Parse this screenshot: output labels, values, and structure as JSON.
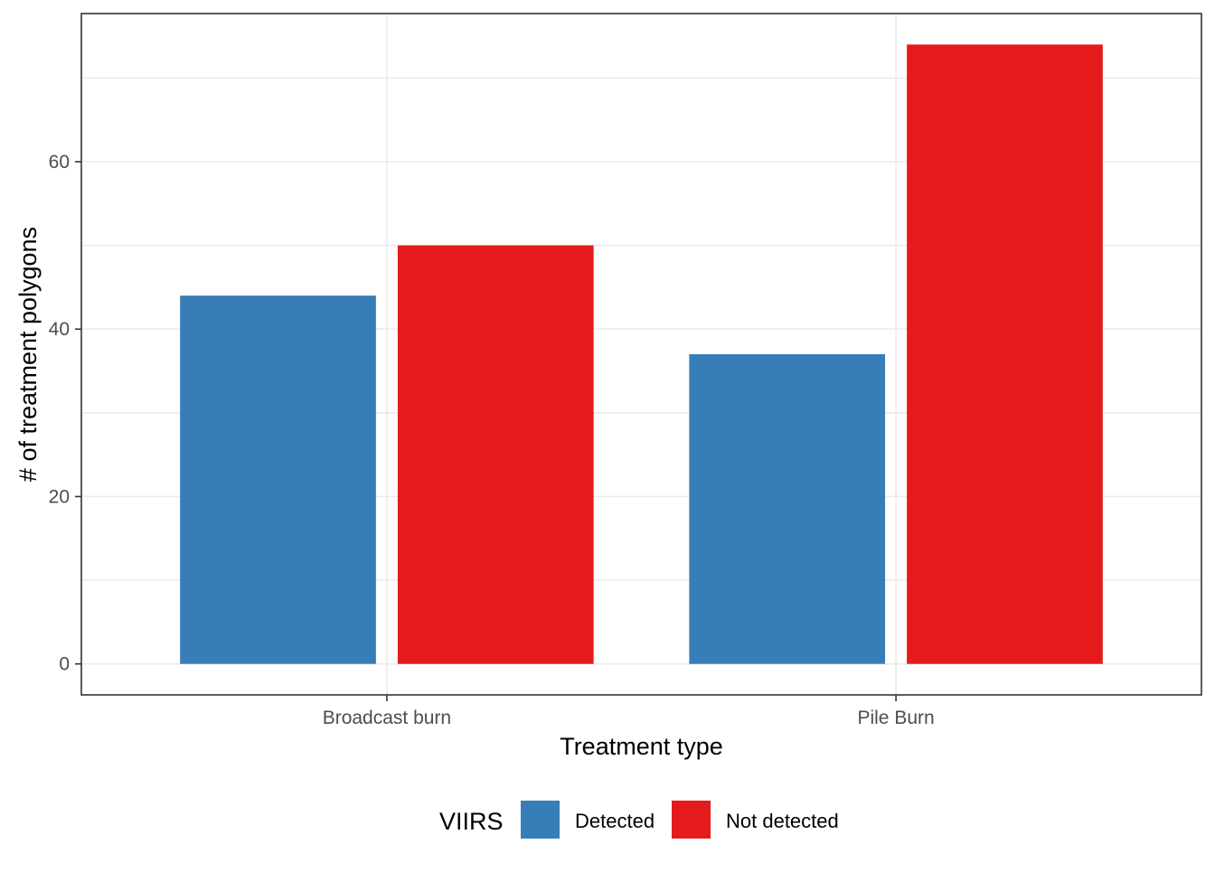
{
  "chart_data": {
    "type": "bar",
    "categories": [
      "Broadcast burn",
      "Pile Burn"
    ],
    "series": [
      {
        "name": "Detected",
        "values": [
          44,
          37
        ],
        "color": "#377EB8"
      },
      {
        "name": "Not detected",
        "values": [
          50,
          74
        ],
        "color": "#E41A1C"
      }
    ],
    "xlabel": "Treatment type",
    "ylabel": "# of treatment polygons",
    "ylim": [
      -3.7,
      77.7
    ],
    "yticks": [
      0,
      20,
      40,
      60
    ],
    "grid": true,
    "legend": {
      "title": "VIIRS",
      "position": "bottom"
    }
  }
}
